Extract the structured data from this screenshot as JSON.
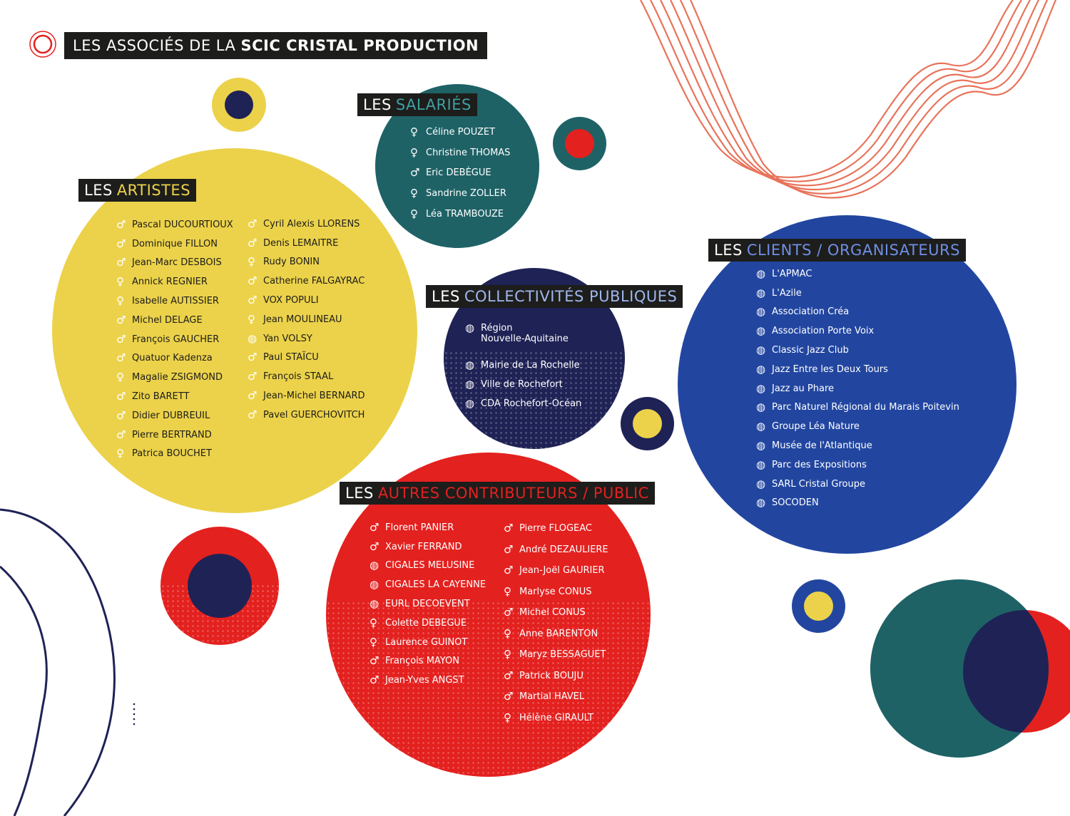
{
  "title": {
    "prefix": "LES ASSOCIÉS DE LA",
    "bold": "SCIC CRISTAL PRODUCTION"
  },
  "colors": {
    "yellow": "#ecd24a",
    "teal": "#1e6266",
    "navy": "#1f2255",
    "red": "#e3211f",
    "blue": "#2246a0",
    "orange": "#e8735a"
  },
  "icons": {
    "female": "♀",
    "male": "♂",
    "org": "org-planet-icon"
  },
  "salaries": {
    "label_a": "LES",
    "label_b": "SALARIÉS",
    "items": [
      {
        "g": "♀",
        "name": "Céline POUZET"
      },
      {
        "g": "♀",
        "name": "Christine THOMAS"
      },
      {
        "g": "♂",
        "name": "Eric DEBÈGUE"
      },
      {
        "g": "♀",
        "name": "Sandrine ZOLLER"
      },
      {
        "g": "♀",
        "name": "Léa TRAMBOUZE"
      }
    ]
  },
  "artistes": {
    "label_a": "LES",
    "label_b": "ARTISTES",
    "col1": [
      {
        "g": "♂",
        "name": "Pascal DUCOURTIOUX"
      },
      {
        "g": "♂",
        "name": "Dominique FILLON"
      },
      {
        "g": "♂",
        "name": "Jean-Marc DESBOIS"
      },
      {
        "g": "♀",
        "name": "Annick REGNIER"
      },
      {
        "g": "♀",
        "name": "Isabelle AUTISSIER"
      },
      {
        "g": "♂",
        "name": "Michel DELAGE"
      },
      {
        "g": "♂",
        "name": "François GAUCHER"
      },
      {
        "g": "♂",
        "name": "Quatuor Kadenza"
      },
      {
        "g": "♀",
        "name": "Magalie ZSIGMOND"
      },
      {
        "g": "♂",
        "name": "Zito BARETT"
      },
      {
        "g": "♂",
        "name": "Didier DUBREUIL"
      },
      {
        "g": "♂",
        "name": "Pierre BERTRAND"
      },
      {
        "g": "♀",
        "name": "Patrica BOUCHET"
      }
    ],
    "col2": [
      {
        "g": "♂",
        "name": "Cyril Alexis LLORENS"
      },
      {
        "g": "♂",
        "name": "Denis LEMAITRE"
      },
      {
        "g": "♀",
        "name": "Rudy BONIN"
      },
      {
        "g": "♂",
        "name": "Catherine FALGAYRAC"
      },
      {
        "g": "♂",
        "name": "VOX POPULI"
      },
      {
        "g": "♀",
        "name": "Jean MOULINEAU"
      },
      {
        "g": "◍",
        "name": "Yan VOLSY"
      },
      {
        "g": "♂",
        "name": "Paul STAÏCU"
      },
      {
        "g": "♂",
        "name": "François STAAL"
      },
      {
        "g": "♂",
        "name": "Jean-Michel BERNARD"
      },
      {
        "g": "♂",
        "name": "Pavel GUERCHOVITCH"
      }
    ]
  },
  "collectivites": {
    "label_a": "LES",
    "label_b": "COLLECTIVITÉS PUBLIQUES",
    "items": [
      {
        "g": "◍",
        "name": "Région",
        "name2": "Nouvelle-Aquitaine"
      },
      {
        "g": "◍",
        "name": "Mairie de La Rochelle",
        "name2": ""
      },
      {
        "g": "◍",
        "name": "Ville de Rochefort",
        "name2": ""
      },
      {
        "g": "◍",
        "name": "CDA Rochefort-Océan",
        "name2": ""
      }
    ]
  },
  "clients": {
    "label_a": "LES",
    "label_b": "CLIENTS / ORGANISATEURS",
    "items": [
      {
        "g": "◍",
        "name": "L'APMAC"
      },
      {
        "g": "◍",
        "name": "L'Azile"
      },
      {
        "g": "◍",
        "name": "Association Créa"
      },
      {
        "g": "◍",
        "name": "Association Porte Voix"
      },
      {
        "g": "◍",
        "name": "Classic Jazz Club"
      },
      {
        "g": "◍",
        "name": "Jazz Entre les Deux Tours"
      },
      {
        "g": "◍",
        "name": "Jazz au Phare"
      },
      {
        "g": "◍",
        "name": "Parc Naturel Régional du Marais Poitevin"
      },
      {
        "g": "◍",
        "name": "Groupe Léa Nature"
      },
      {
        "g": "◍",
        "name": "Musée de l'Atlantique"
      },
      {
        "g": "◍",
        "name": "Parc des Expositions"
      },
      {
        "g": "◍",
        "name": "SARL Cristal Groupe"
      },
      {
        "g": "◍",
        "name": "SOCODEN"
      }
    ]
  },
  "autres": {
    "label_a": "LES",
    "label_b": "AUTRES CONTRIBUTEURS / PUBLIC",
    "col1": [
      {
        "g": "♂",
        "name": "Florent PANIER"
      },
      {
        "g": "♂",
        "name": "Xavier FERRAND"
      },
      {
        "g": "◍",
        "name": "CIGALES MELUSINE"
      },
      {
        "g": "◍",
        "name": "CIGALES LA CAYENNE"
      },
      {
        "g": "◍",
        "name": "EURL DECOEVENT"
      },
      {
        "g": "♀",
        "name": "Colette DEBEGUE"
      },
      {
        "g": "♀",
        "name": "Laurence GUINOT"
      },
      {
        "g": "♂",
        "name": "François MAYON"
      },
      {
        "g": "♂",
        "name": "Jean-Yves ANGST"
      }
    ],
    "col2": [
      {
        "g": "♂",
        "name": "Pierre FLOGEAC"
      },
      {
        "g": "♂",
        "name": "André DEZAULIERE"
      },
      {
        "g": "♂",
        "name": "Jean-Joël GAURIER"
      },
      {
        "g": "♀",
        "name": "Marlyse CONUS"
      },
      {
        "g": "♂",
        "name": "Michel CONUS"
      },
      {
        "g": "♀",
        "name": "Anne BARENTON"
      },
      {
        "g": "♀",
        "name": "Maryz BESSAGUET"
      },
      {
        "g": "♂",
        "name": "Patrick BOUJU"
      },
      {
        "g": "♂",
        "name": "Martial HAVEL"
      },
      {
        "g": "♀",
        "name": "Hélène GIRAULT"
      }
    ]
  }
}
